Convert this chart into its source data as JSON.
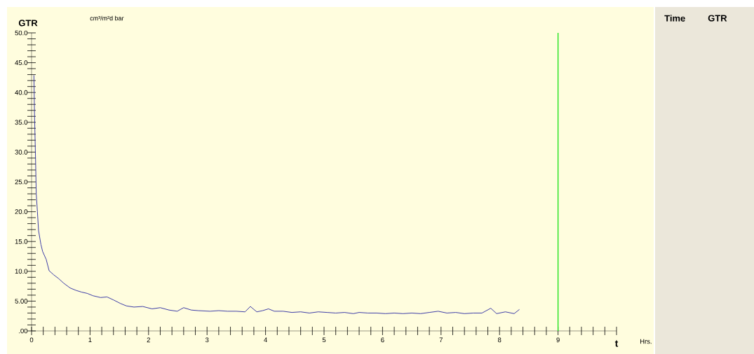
{
  "chart_data": {
    "type": "line",
    "ylabel": "GTR",
    "xlabel": "t",
    "annotations": [
      "cm³/m²d bar",
      "Hrs.",
      "Time",
      "GTR"
    ],
    "xlim": [
      0,
      10
    ],
    "ylim": [
      0,
      50
    ],
    "xticks": [
      0,
      1,
      2,
      3,
      4,
      5,
      6,
      7,
      8,
      9,
      {
        "value": 10,
        "label": null
      }
    ],
    "yticks": [
      {
        "value": 0,
        "label": ".00"
      },
      {
        "value": 5,
        "label": "5.00"
      },
      {
        "value": 10,
        "label": "10.0"
      },
      {
        "value": 15,
        "label": "15.0"
      },
      {
        "value": 20,
        "label": "20.0"
      },
      {
        "value": 25,
        "label": "25.0"
      },
      {
        "value": 30,
        "label": "30.0"
      },
      {
        "value": 35,
        "label": "35.0"
      },
      {
        "value": 40,
        "label": "40.0"
      },
      {
        "value": 45,
        "label": "45.0"
      },
      {
        "value": 50,
        "label": "50.0"
      }
    ],
    "grid": false,
    "marker": "none",
    "line_style": "solid",
    "ref_lines": [
      {
        "axis": "x",
        "value": 9,
        "color": "#00e000"
      }
    ],
    "x": [
      0.04,
      0.05,
      0.07,
      0.08,
      0.1,
      0.12,
      0.16,
      0.19,
      0.25,
      0.3,
      0.38,
      0.46,
      0.55,
      0.66,
      0.76,
      0.86,
      0.95,
      1.05,
      1.18,
      1.29,
      1.4,
      1.52,
      1.62,
      1.75,
      1.9,
      2.06,
      2.2,
      2.35,
      2.49,
      2.6,
      2.73,
      2.85,
      3.05,
      3.2,
      3.35,
      3.5,
      3.65,
      3.74,
      3.85,
      3.95,
      4.05,
      4.15,
      4.3,
      4.45,
      4.6,
      4.75,
      4.9,
      5.05,
      5.2,
      5.35,
      5.5,
      5.6,
      5.75,
      5.9,
      6.05,
      6.2,
      6.35,
      6.5,
      6.65,
      6.8,
      6.95,
      7.1,
      7.25,
      7.4,
      7.55,
      7.7,
      7.85,
      7.95,
      8.1,
      8.25,
      8.34
    ],
    "series": [
      {
        "color": "#2828a0",
        "values": [
          42.9,
          36.5,
          28,
          23.0,
          20,
          16.8,
          14.5,
          13.3,
          12,
          10.1,
          9.4,
          8.8,
          8,
          7.2,
          6.8,
          6.5,
          6.3,
          5.9,
          5.6,
          5.7,
          5.2,
          4.6,
          4.2,
          4.0,
          4.1,
          3.7,
          3.9,
          3.5,
          3.3,
          3.9,
          3.5,
          3.4,
          3.3,
          3.4,
          3.3,
          3.3,
          3.2,
          4.1,
          3.2,
          3.4,
          3.7,
          3.3,
          3.3,
          3.1,
          3.2,
          3.0,
          3.2,
          3.1,
          3.0,
          3.1,
          2.9,
          3.1,
          3.0,
          3.0,
          2.9,
          3.0,
          2.9,
          3.0,
          2.9,
          3.1,
          3.3,
          3.0,
          3.1,
          2.9,
          3.0,
          3.0,
          3.8,
          2.9,
          3.2,
          2.9,
          3.6
        ]
      }
    ]
  }
}
